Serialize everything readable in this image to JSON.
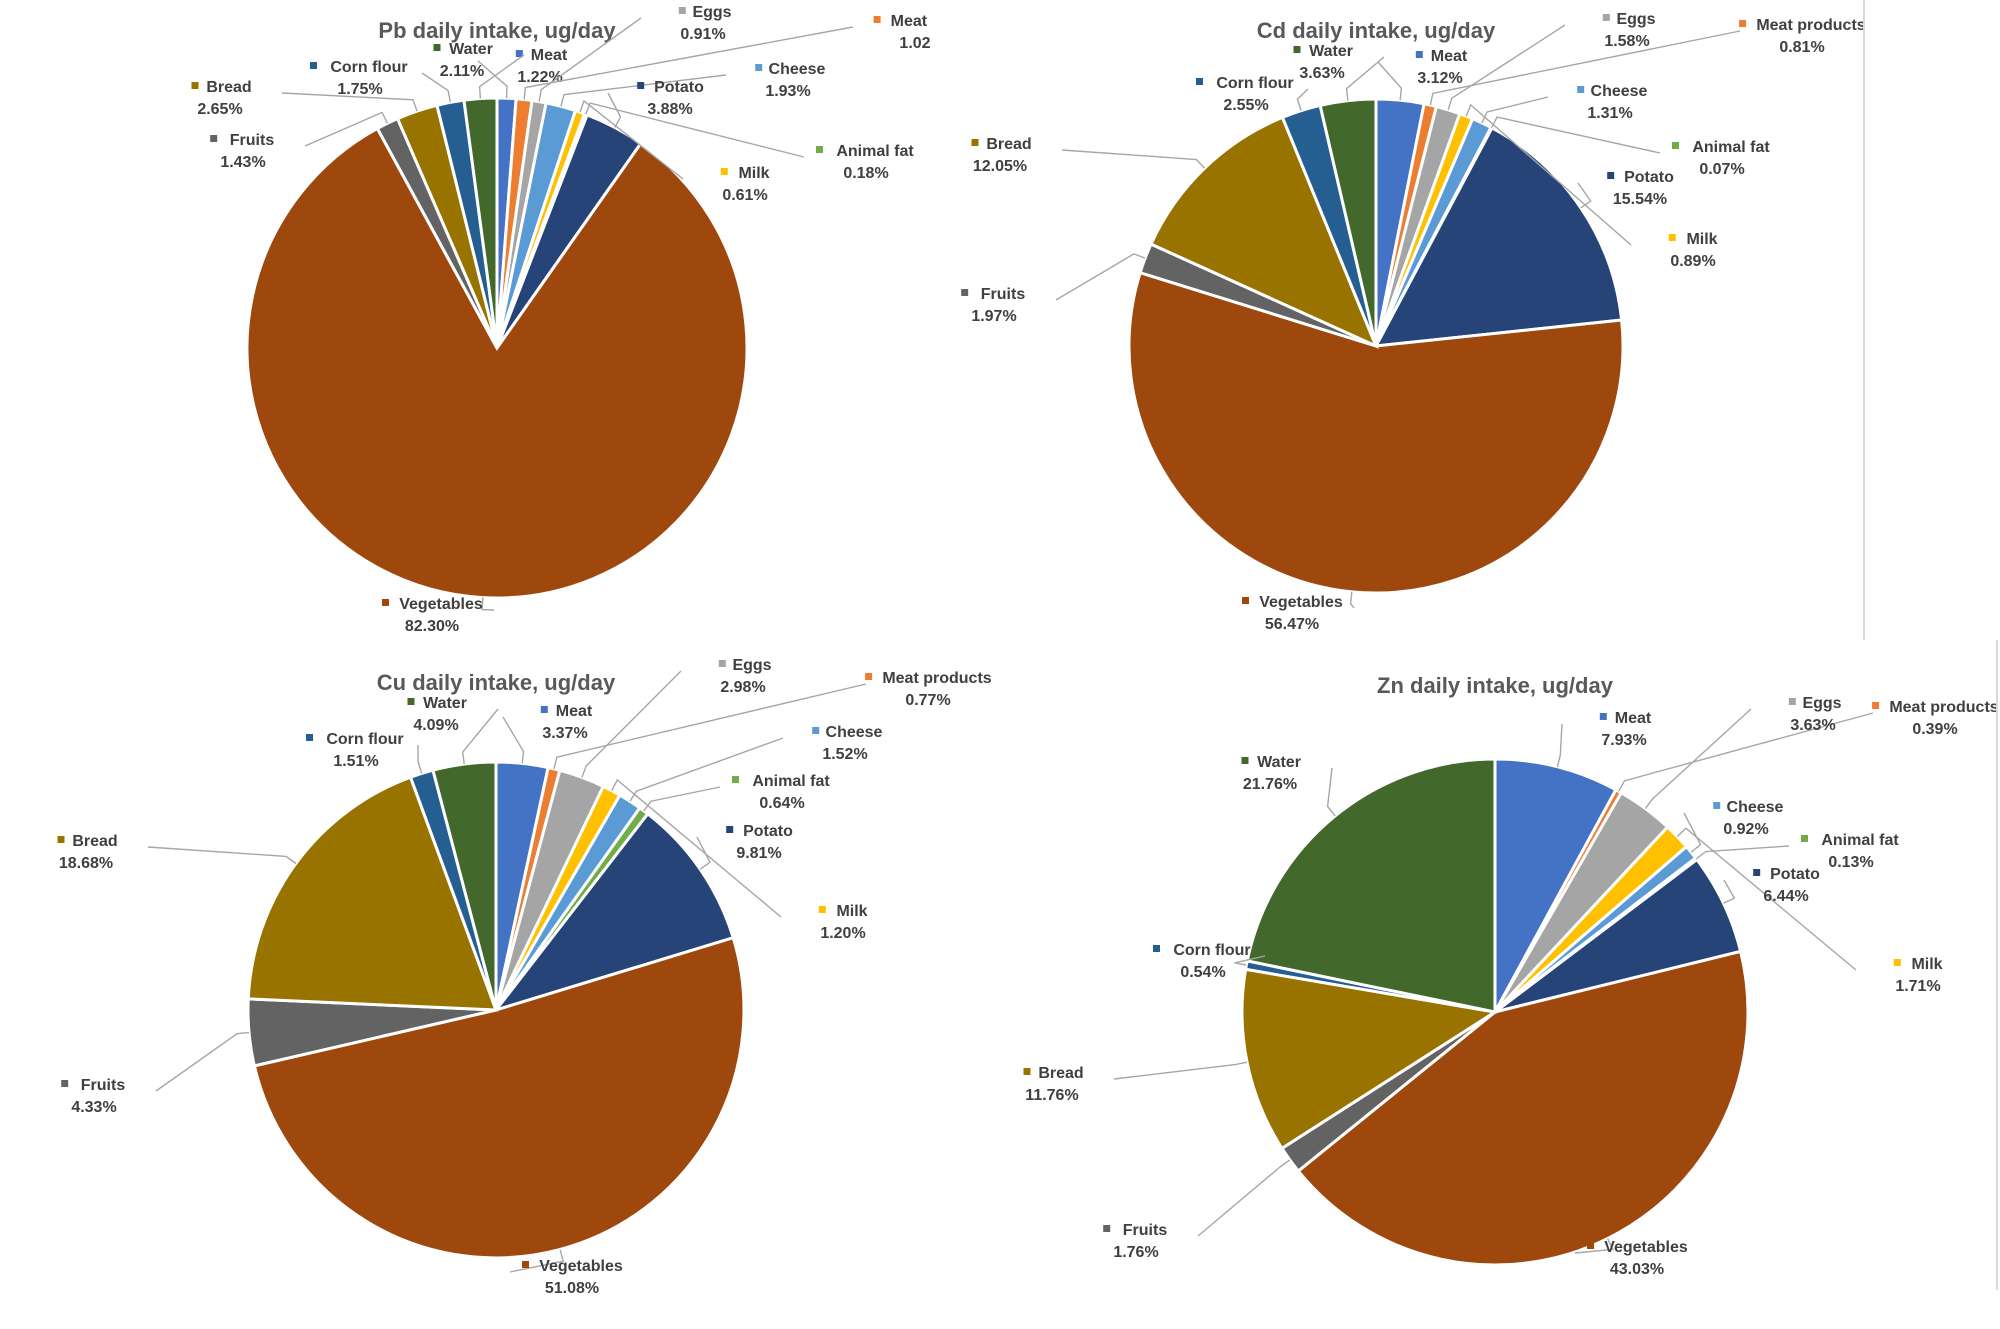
{
  "chart_data": [
    {
      "type": "pie",
      "title": "Pb daily intake, ug/day",
      "slices": [
        {
          "label": "Meat",
          "value": 1.22,
          "value_label": "1.22%"
        },
        {
          "label": "Meat pro",
          "value": 1.02,
          "value_label": "1.02"
        },
        {
          "label": "Eggs",
          "value": 0.91,
          "value_label": "0.91%"
        },
        {
          "label": "Cheese",
          "value": 1.93,
          "value_label": "1.93%"
        },
        {
          "label": "Milk",
          "value": 0.61,
          "value_label": "0.61%"
        },
        {
          "label": "Animal fat",
          "value": 0.18,
          "value_label": "0.18%"
        },
        {
          "label": "Potato",
          "value": 3.88,
          "value_label": "3.88%"
        },
        {
          "label": "Vegetables",
          "value": 82.3,
          "value_label": "82.30%"
        },
        {
          "label": "Fruits",
          "value": 1.43,
          "value_label": "1.43%"
        },
        {
          "label": "Bread",
          "value": 2.65,
          "value_label": "2.65%"
        },
        {
          "label": "Corn flour",
          "value": 1.75,
          "value_label": "1.75%"
        },
        {
          "label": "Water",
          "value": 2.11,
          "value_label": "2.11%"
        }
      ]
    },
    {
      "type": "pie",
      "title": "Cd daily intake, ug/day",
      "slices": [
        {
          "label": "Meat",
          "value": 3.12,
          "value_label": "3.12%"
        },
        {
          "label": "Meat products",
          "value": 0.81,
          "value_label": "0.81%"
        },
        {
          "label": "Eggs",
          "value": 1.58,
          "value_label": "1.58%"
        },
        {
          "label": "Milk",
          "value": 0.89,
          "value_label": "0.89%"
        },
        {
          "label": "Cheese",
          "value": 1.31,
          "value_label": "1.31%"
        },
        {
          "label": "Animal fat",
          "value": 0.07,
          "value_label": "0.07%"
        },
        {
          "label": "Potato",
          "value": 15.54,
          "value_label": "15.54%"
        },
        {
          "label": "Vegetables",
          "value": 56.47,
          "value_label": "56.47%"
        },
        {
          "label": "Fruits",
          "value": 1.97,
          "value_label": "1.97%"
        },
        {
          "label": "Bread",
          "value": 12.05,
          "value_label": "12.05%"
        },
        {
          "label": "Corn flour",
          "value": 2.55,
          "value_label": "2.55%"
        },
        {
          "label": "Water",
          "value": 3.63,
          "value_label": "3.63%"
        }
      ]
    },
    {
      "type": "pie",
      "title": "Cu daily intake, ug/day",
      "slices": [
        {
          "label": "Meat",
          "value": 3.37,
          "value_label": "3.37%"
        },
        {
          "label": "Meat products",
          "value": 0.77,
          "value_label": "0.77%"
        },
        {
          "label": "Eggs",
          "value": 2.98,
          "value_label": "2.98%"
        },
        {
          "label": "Milk",
          "value": 1.2,
          "value_label": "1.20%"
        },
        {
          "label": "Cheese",
          "value": 1.52,
          "value_label": "1.52%"
        },
        {
          "label": "Animal fat",
          "value": 0.64,
          "value_label": "0.64%"
        },
        {
          "label": "Potato",
          "value": 9.81,
          "value_label": "9.81%"
        },
        {
          "label": "Vegetables",
          "value": 51.08,
          "value_label": "51.08%"
        },
        {
          "label": "Fruits",
          "value": 4.33,
          "value_label": "4.33%"
        },
        {
          "label": "Bread",
          "value": 18.68,
          "value_label": "18.68%"
        },
        {
          "label": "Corn flour",
          "value": 1.51,
          "value_label": "1.51%"
        },
        {
          "label": "Water",
          "value": 4.09,
          "value_label": "4.09%"
        }
      ]
    },
    {
      "type": "pie",
      "title": "Zn daily intake, ug/day",
      "slices": [
        {
          "label": "Meat",
          "value": 7.93,
          "value_label": "7.93%"
        },
        {
          "label": "Meat products",
          "value": 0.39,
          "value_label": "0.39%"
        },
        {
          "label": "Eggs",
          "value": 3.63,
          "value_label": "3.63%"
        },
        {
          "label": "Milk",
          "value": 1.71,
          "value_label": "1.71%"
        },
        {
          "label": "Cheese",
          "value": 0.92,
          "value_label": "0.92%"
        },
        {
          "label": "Animal fat",
          "value": 0.13,
          "value_label": "0.13%"
        },
        {
          "label": "Potato",
          "value": 6.44,
          "value_label": "6.44%"
        },
        {
          "label": "Vegetables",
          "value": 43.03,
          "value_label": "43.03%"
        },
        {
          "label": "Fruits",
          "value": 1.76,
          "value_label": "1.76%"
        },
        {
          "label": "Bread",
          "value": 11.76,
          "value_label": "11.76%"
        },
        {
          "label": "Corn flour",
          "value": 0.54,
          "value_label": "0.54%"
        },
        {
          "label": "Water",
          "value": 21.76,
          "value_label": "21.76%"
        }
      ]
    }
  ],
  "colors": {
    "Meat": "#4472c4",
    "Meat products": "#ed7d31",
    "Meat pro": "#ed7d31",
    "Eggs": "#a5a5a5",
    "Milk": "#ffc000",
    "Cheese": "#5b9bd5",
    "Animal fat": "#70ad47",
    "Potato": "#264478",
    "Vegetables": "#9e480e",
    "Fruits": "#636363",
    "Bread": "#997300",
    "Corn flour": "#255e91",
    "Water": "#43682b"
  }
}
